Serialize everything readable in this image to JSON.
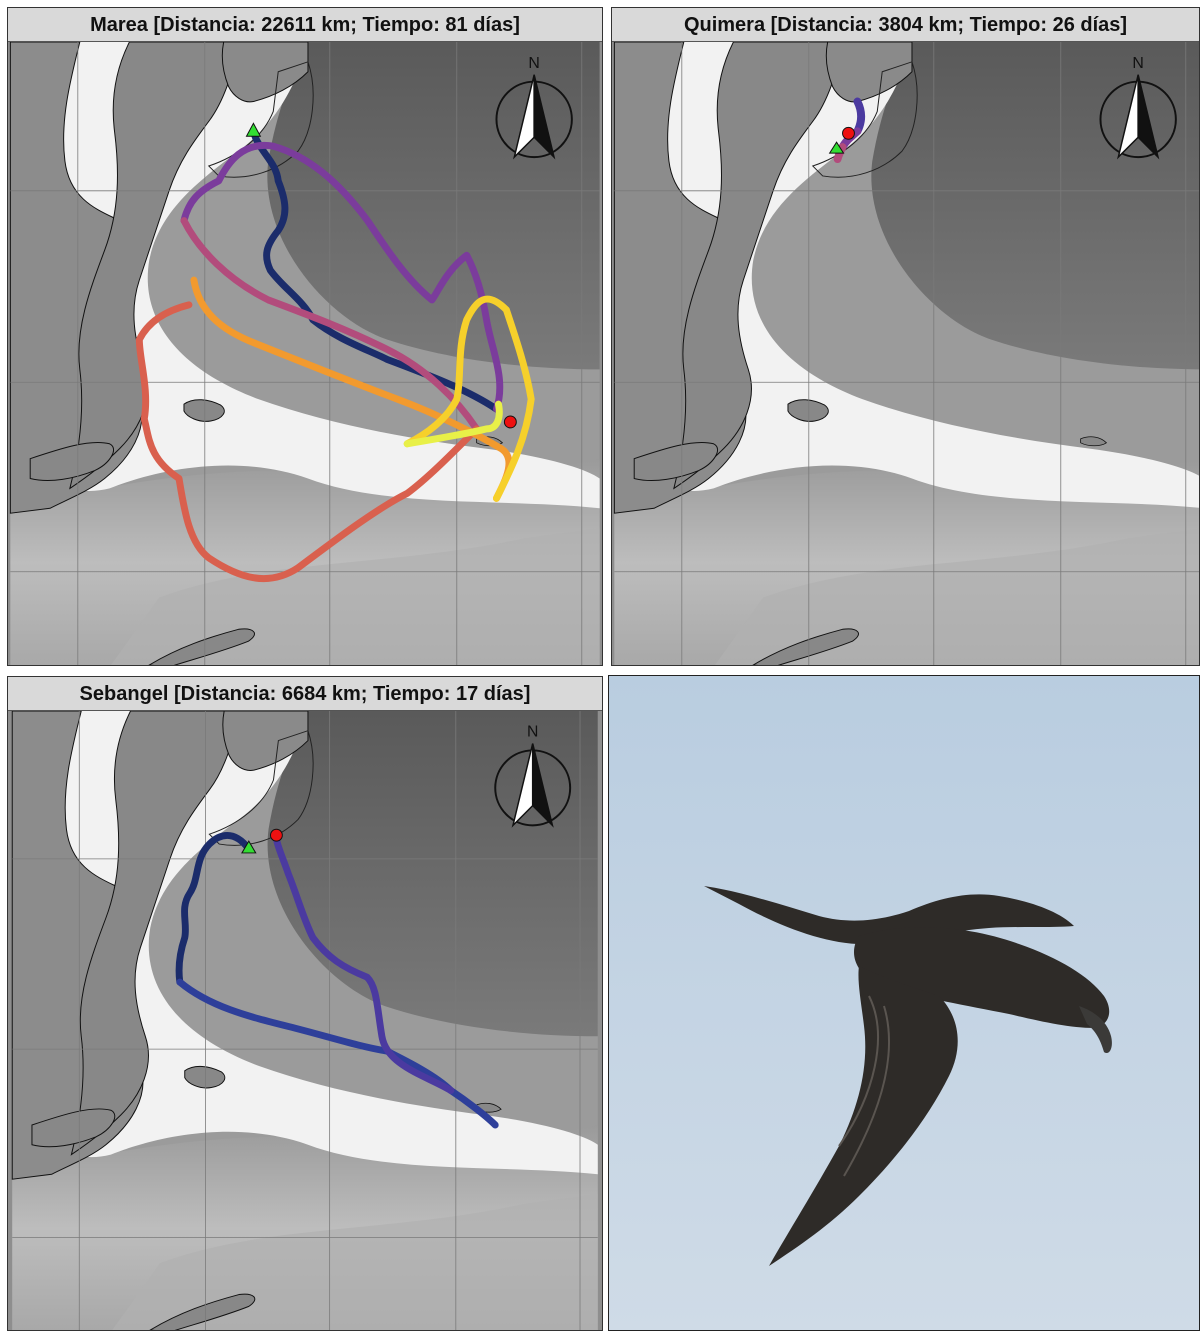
{
  "panels": [
    {
      "id": "marea",
      "title": "Marea [Distancia: 22611 km; Tiempo: 81 días]",
      "compass_label": "N",
      "track_colors": [
        "#1b2c6b",
        "#4b3aa0",
        "#7b3c9c",
        "#b24c7c",
        "#d9604e",
        "#f29a2e",
        "#f6d02b",
        "#e8f048"
      ]
    },
    {
      "id": "quimera",
      "title": "Quimera [Distancia: 3804 km; Tiempo: 26 días]",
      "compass_label": "N",
      "track_colors": [
        "#4b3aa0",
        "#7b3c9c",
        "#b24c7c"
      ]
    },
    {
      "id": "sebangel",
      "title": "Sebangel [Distancia: 6684 km; Tiempo: 17 días]",
      "compass_label": "N",
      "track_colors": [
        "#1b2c6b",
        "#2e3f9a",
        "#4b3aa0"
      ]
    }
  ],
  "markers": {
    "start_color": "#33dd33",
    "end_color": "#ee1111"
  },
  "photo": {
    "subject": "seabird-in-flight",
    "sky_color": "#c9d9e8",
    "bird_color": "#2e2b28"
  }
}
